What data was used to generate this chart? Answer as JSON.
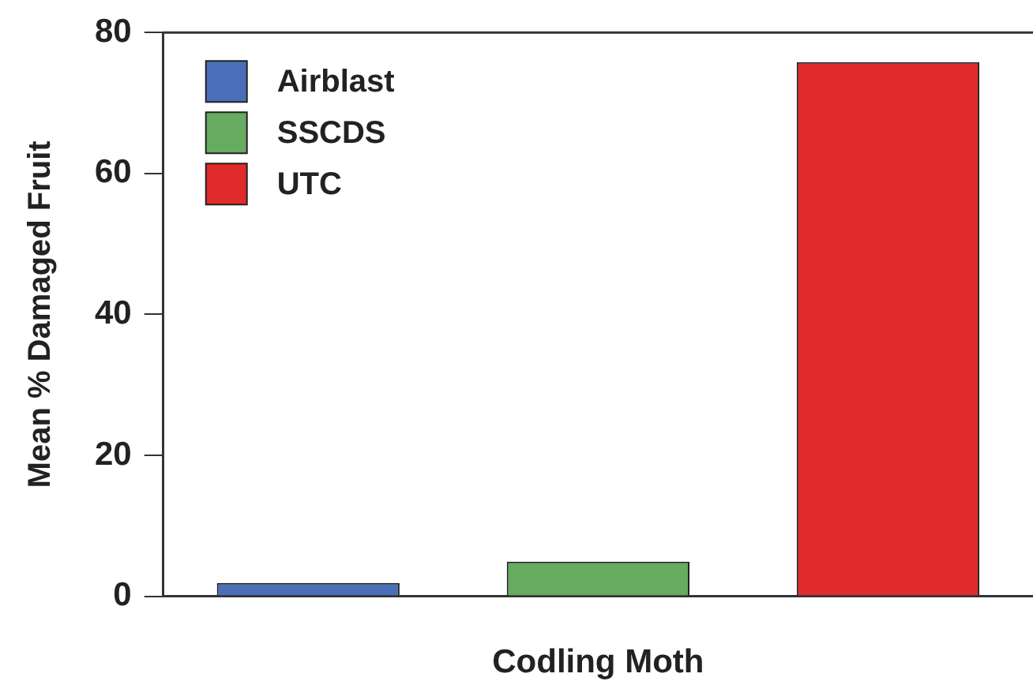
{
  "chart_data": {
    "type": "bar",
    "xlabel": "Codling Moth",
    "ylabel": "Mean % Damaged Fruit",
    "categories": [
      null
    ],
    "series": [
      {
        "name": "Airblast",
        "color": "#4a6fb8",
        "values": [
          1.9
        ]
      },
      {
        "name": "SSCDS",
        "color": "#66ab5f",
        "values": [
          4.9
        ]
      },
      {
        "name": "UTC",
        "color": "#e02a2b",
        "values": [
          75.8
        ]
      }
    ],
    "ylim": [
      0,
      80
    ],
    "yticks": [
      0,
      20,
      40,
      60,
      80
    ],
    "grid": false,
    "legend": "top left"
  }
}
